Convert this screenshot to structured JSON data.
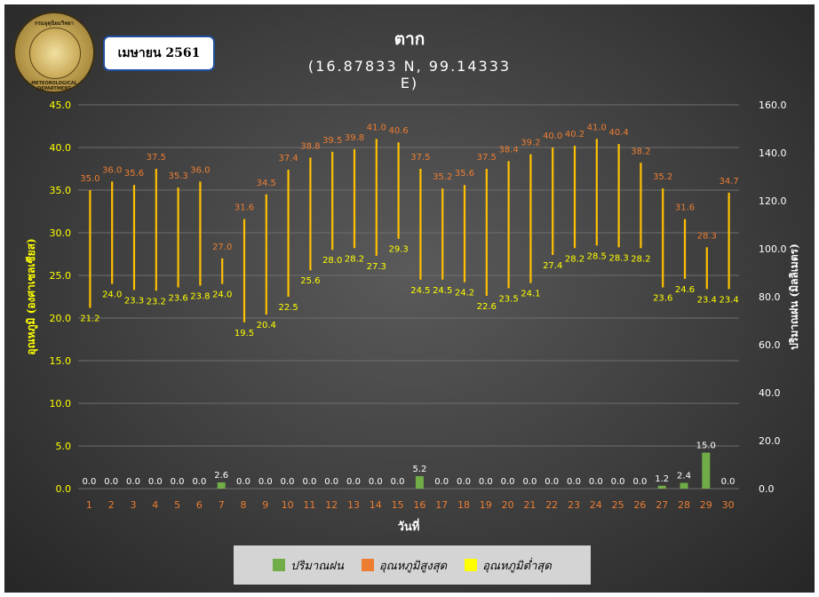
{
  "header": {
    "month_label": "เมษายน 2561",
    "station": "ตาก",
    "coords": "(16.87833 N, 99.14333 E)",
    "logo_top_text": "กรมอุตุนิยมวิทยา",
    "logo_bottom_text": "METEOROLOGICAL DEPARTMENT"
  },
  "legend": {
    "rain": "ปริมาณฝน",
    "tmax": "อุณหภูมิสูงสุด",
    "tmin": "อุณหภูมิต่ำสุด"
  },
  "colors": {
    "rain": "#70ad47",
    "tmax": "#ed7d31",
    "tmin": "#ffff00",
    "hiloline": "#ffc000",
    "axis_left": "#ffff00",
    "axis_right": "#ffffff",
    "day_labels": "#ed7d31"
  },
  "chart_data": {
    "type": "bar",
    "xlabel": "วันที่",
    "ylabel_left": "อุณหภูมิ (องศาเซลเซียส)",
    "ylabel_right": "ปริมาณฝน (มิลลิเมตร)",
    "ylim_left": [
      0,
      45
    ],
    "yticks_left": [
      "0.0",
      "5.0",
      "10.0",
      "15.0",
      "20.0",
      "25.0",
      "30.0",
      "35.0",
      "40.0",
      "45.0"
    ],
    "ylim_right": [
      0,
      160
    ],
    "yticks_right": [
      "0.0",
      "20.0",
      "40.0",
      "60.0",
      "80.0",
      "100.0",
      "120.0",
      "140.0",
      "160.0"
    ],
    "grid": true,
    "legend_position": "bottom",
    "categories": [
      "1",
      "2",
      "3",
      "4",
      "5",
      "6",
      "7",
      "8",
      "9",
      "10",
      "11",
      "12",
      "13",
      "14",
      "15",
      "16",
      "17",
      "18",
      "19",
      "20",
      "21",
      "22",
      "23",
      "24",
      "25",
      "26",
      "27",
      "28",
      "29",
      "30"
    ],
    "series": [
      {
        "name": "อุณหภูมิสูงสุด",
        "axis": "left",
        "values": [
          35.0,
          36.0,
          35.6,
          37.5,
          35.3,
          36.0,
          27.0,
          31.6,
          34.5,
          37.4,
          38.8,
          39.5,
          39.8,
          41.0,
          40.6,
          37.5,
          35.2,
          35.6,
          37.5,
          38.4,
          39.2,
          40.0,
          40.2,
          41.0,
          40.4,
          38.2,
          35.2,
          31.6,
          28.3,
          34.7
        ]
      },
      {
        "name": "อุณหภูมิต่ำสุด",
        "axis": "left",
        "values": [
          21.2,
          24.0,
          23.3,
          23.2,
          23.6,
          23.8,
          24.0,
          19.5,
          20.4,
          22.5,
          25.6,
          28.0,
          28.2,
          27.3,
          29.3,
          24.5,
          24.5,
          24.2,
          22.6,
          23.5,
          24.1,
          27.4,
          28.2,
          28.5,
          28.3,
          28.2,
          23.6,
          24.6,
          23.4,
          23.4
        ]
      },
      {
        "name": "ปริมาณฝน",
        "axis": "right",
        "values": [
          0.0,
          0.0,
          0.0,
          0.0,
          0.0,
          0.0,
          2.6,
          0.0,
          0.0,
          0.0,
          0.0,
          0.0,
          0.0,
          0.0,
          0.0,
          5.2,
          0.0,
          0.0,
          0.0,
          0.0,
          0.0,
          0.0,
          0.0,
          0.0,
          0.0,
          0.0,
          1.2,
          2.4,
          15.0,
          0.0
        ]
      }
    ]
  }
}
